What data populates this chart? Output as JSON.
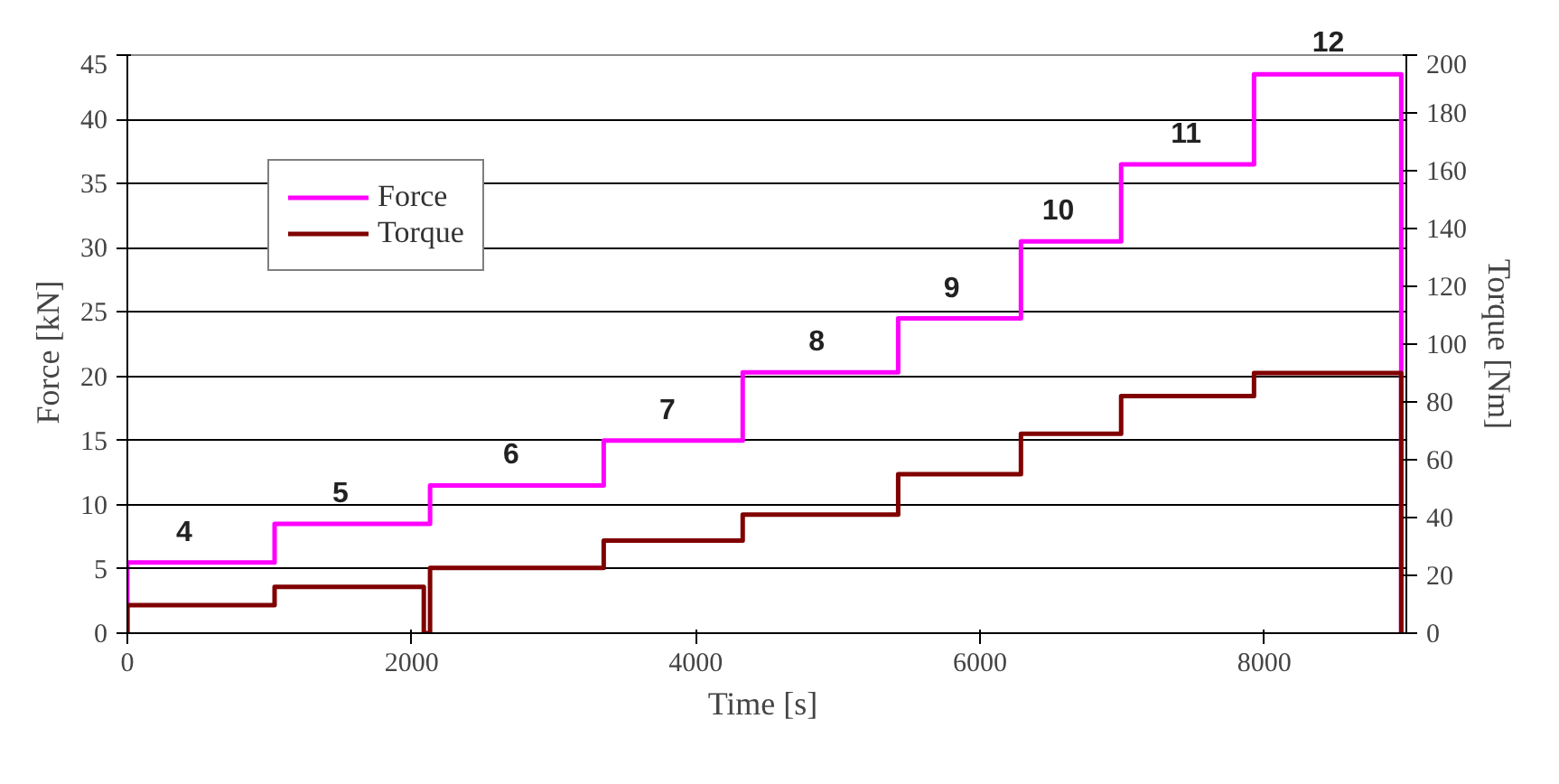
{
  "chart_data": {
    "type": "line",
    "xlabel": "Time  [s]",
    "ylabel": "Force   [kN]",
    "y2label": "Torque [Nm]",
    "xlim": [
      0,
      9000
    ],
    "xticks": [
      0,
      2000,
      4000,
      6000,
      8000
    ],
    "ylim": [
      0,
      45
    ],
    "yticks": [
      0,
      5,
      10,
      15,
      20,
      25,
      30,
      35,
      40,
      45
    ],
    "y2lim": [
      0,
      200
    ],
    "y2ticks": [
      0,
      20,
      40,
      60,
      80,
      100,
      120,
      140,
      160,
      180,
      200
    ],
    "grid": "y",
    "legend": "top left",
    "marker": "none",
    "line_style": "solid",
    "series": [
      {
        "name": "Force",
        "color": "#ff00ff",
        "x": [
          0,
          0,
          1036,
          1036,
          2130,
          2130,
          3352,
          3352,
          4330,
          4330,
          5424,
          5424,
          6288,
          6288,
          6993,
          6993,
          7928,
          7928,
          8964,
          8964
        ],
        "values": [
          0,
          5.5,
          5.5,
          8.5,
          8.5,
          11.5,
          11.5,
          15,
          15,
          20.3,
          20.3,
          24.5,
          24.5,
          30.5,
          30.5,
          36.5,
          36.5,
          43.5,
          43.5,
          0
        ]
      },
      {
        "name": "Torque",
        "color": "#800000",
        "axis": "y2",
        "x": [
          0,
          0,
          1036,
          1036,
          2086,
          2086,
          2130,
          2130,
          3352,
          3352,
          4330,
          4330,
          5424,
          5424,
          6288,
          6288,
          6993,
          6993,
          7928,
          7928,
          8964,
          8964
        ],
        "values": [
          0,
          9.7,
          9.7,
          16,
          16,
          0,
          0,
          22.6,
          22.6,
          32,
          32,
          41,
          41,
          55,
          55,
          69,
          69,
          82,
          82,
          90,
          90,
          0
        ]
      }
    ],
    "annotations": [
      {
        "text": "4",
        "x": 400,
        "y": 5.5
      },
      {
        "text": "5",
        "x": 1500,
        "y": 8.5
      },
      {
        "text": "6",
        "x": 2700,
        "y": 11.5
      },
      {
        "text": "7",
        "x": 3800,
        "y": 15
      },
      {
        "text": "8",
        "x": 4850,
        "y": 20.3
      },
      {
        "text": "9",
        "x": 5800,
        "y": 24.5
      },
      {
        "text": "10",
        "x": 6550,
        "y": 30.5
      },
      {
        "text": "11",
        "x": 7450,
        "y": 36.5
      },
      {
        "text": "12",
        "x": 8450,
        "y": 43.5
      }
    ]
  }
}
